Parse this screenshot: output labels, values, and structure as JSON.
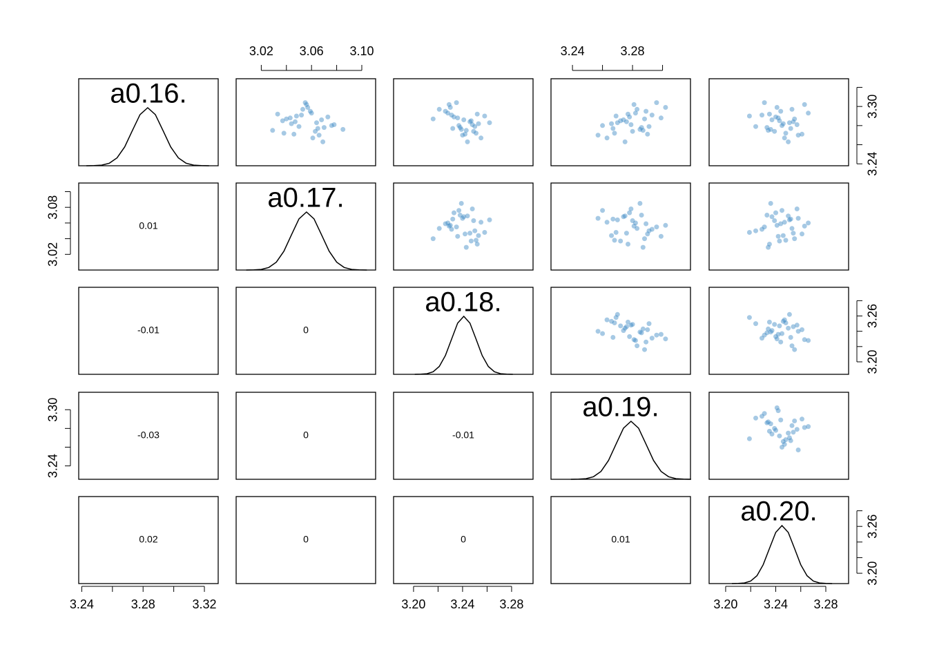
{
  "chart_data": {
    "type": "scatter_matrix",
    "point_color": "#3a87c4",
    "line_color": "#000000",
    "variables": [
      {
        "name": "a0.16.",
        "lim": [
          3.238,
          3.329
        ],
        "samples": [
          3.284,
          3.278,
          3.295,
          3.272,
          3.286,
          3.291,
          3.281,
          3.267,
          3.288,
          3.302,
          3.275,
          3.283,
          3.289,
          3.279,
          3.297,
          3.27,
          3.285,
          3.276,
          3.293,
          3.282,
          3.304,
          3.263,
          3.287,
          3.274,
          3.29,
          3.28,
          3.299,
          3.271,
          3.292,
          3.277
        ],
        "density_x": [
          3.243,
          3.248,
          3.253,
          3.258,
          3.263,
          3.268,
          3.273,
          3.278,
          3.283,
          3.288,
          3.293,
          3.298,
          3.303,
          3.308,
          3.313,
          3.318,
          3.323
        ]
      },
      {
        "name": "a0.17.",
        "lim": [
          3.0,
          3.111
        ],
        "samples": [
          3.047,
          3.07,
          3.059,
          3.038,
          3.068,
          3.052,
          3.078,
          3.061,
          3.043,
          3.056,
          3.029,
          3.064,
          3.073,
          3.05,
          3.053,
          3.066,
          3.037,
          3.085,
          3.06,
          3.044,
          3.055,
          3.069,
          3.04,
          3.063,
          3.048,
          3.076,
          3.057,
          3.046,
          3.033,
          3.065
        ],
        "density_x": [
          3.008,
          3.014,
          3.02,
          3.026,
          3.032,
          3.038,
          3.044,
          3.05,
          3.056,
          3.062,
          3.068,
          3.074,
          3.08,
          3.086,
          3.092,
          3.098,
          3.104
        ]
      },
      {
        "name": "a0.18.",
        "lim": [
          3.1837,
          3.2975
        ],
        "samples": [
          3.246,
          3.238,
          3.226,
          3.251,
          3.241,
          3.231,
          3.248,
          3.255,
          3.236,
          3.229,
          3.243,
          3.262,
          3.233,
          3.25,
          3.221,
          3.24,
          3.247,
          3.239,
          3.228,
          3.253,
          3.235,
          3.244,
          3.216,
          3.249,
          3.258,
          3.237,
          3.23,
          3.242,
          3.252,
          3.232
        ],
        "density_x": [
          3.201,
          3.206,
          3.211,
          3.216,
          3.221,
          3.226,
          3.231,
          3.236,
          3.241,
          3.246,
          3.251,
          3.256,
          3.261,
          3.266,
          3.271,
          3.276,
          3.281
        ]
      },
      {
        "name": "a0.19.",
        "lim": [
          3.2257,
          3.3186
        ],
        "samples": [
          3.276,
          3.286,
          3.289,
          3.268,
          3.274,
          3.293,
          3.279,
          3.263,
          3.299,
          3.281,
          3.287,
          3.27,
          3.278,
          3.291,
          3.283,
          3.257,
          3.272,
          3.285,
          3.282,
          3.266,
          3.296,
          3.275,
          3.288,
          3.28,
          3.269,
          3.26,
          3.302,
          3.29,
          3.277,
          3.267
        ],
        "density_x": [
          3.239,
          3.244,
          3.249,
          3.254,
          3.259,
          3.264,
          3.269,
          3.274,
          3.279,
          3.284,
          3.289,
          3.294,
          3.299,
          3.304,
          3.309,
          3.314,
          3.319
        ]
      },
      {
        "name": "a0.20.",
        "lim": [
          3.1868,
          3.2982
        ],
        "samples": [
          3.254,
          3.233,
          3.244,
          3.248,
          3.237,
          3.229,
          3.257,
          3.247,
          3.242,
          3.263,
          3.234,
          3.251,
          3.24,
          3.224,
          3.253,
          3.258,
          3.243,
          3.236,
          3.266,
          3.246,
          3.231,
          3.25,
          3.255,
          3.239,
          3.219,
          3.245,
          3.241,
          3.261,
          3.235,
          3.252
        ],
        "density_x": [
          3.205,
          3.21,
          3.215,
          3.22,
          3.225,
          3.23,
          3.235,
          3.24,
          3.245,
          3.25,
          3.255,
          3.26,
          3.265,
          3.27,
          3.275,
          3.28,
          3.285
        ]
      }
    ],
    "density_y": [
      0.0003,
      0.0022,
      0.0111,
      0.0439,
      0.1353,
      0.3247,
      0.6065,
      0.8825,
      1,
      0.8825,
      0.6065,
      0.3247,
      0.1353,
      0.0439,
      0.0111,
      0.0022,
      0.0003
    ],
    "density_ylim": [
      0,
      1.5
    ],
    "correlations": [
      [
        0.01
      ],
      [
        -0.01,
        0
      ],
      [
        -0.03,
        0,
        -0.01
      ],
      [
        0.02,
        0,
        0,
        0.01
      ]
    ],
    "axes": [
      {
        "var": 0,
        "side": "bottom",
        "ticks": [
          3.24,
          3.28,
          3.32
        ],
        "minor_ticks": [
          3.26,
          3.3
        ]
      },
      {
        "var": 1,
        "side": "top",
        "ticks": [
          3.02,
          3.06,
          {
            "value": 3.1,
            "label": "3.10"
          }
        ],
        "minor_ticks": [
          3.04,
          3.08
        ]
      },
      {
        "var": 2,
        "side": "bottom",
        "ticks": [
          {
            "value": 3.2,
            "label": "3.20"
          },
          3.24,
          3.28
        ],
        "minor_ticks": [
          3.22,
          3.26
        ]
      },
      {
        "var": 3,
        "side": "top",
        "ticks": [
          3.24,
          3.28
        ],
        "minor_ticks": [
          3.26,
          3.3
        ]
      },
      {
        "var": 4,
        "side": "bottom",
        "ticks": [
          {
            "value": 3.2,
            "label": "3.20"
          },
          3.24,
          3.28
        ],
        "minor_ticks": [
          3.22,
          3.26
        ]
      },
      {
        "var": 0,
        "side": "right",
        "ticks": [
          3.24,
          {
            "value": 3.3,
            "label": "3.30"
          }
        ],
        "minor_ticks": [
          3.26,
          3.28,
          3.32
        ]
      },
      {
        "var": 1,
        "side": "left",
        "ticks": [
          3.02,
          3.08
        ],
        "minor_ticks": [
          3.04,
          3.06,
          3.1
        ]
      },
      {
        "var": 2,
        "side": "right",
        "ticks": [
          {
            "value": 3.2,
            "label": "3.20"
          },
          3.26
        ],
        "minor_ticks": [
          3.22,
          3.24,
          3.28
        ]
      },
      {
        "var": 3,
        "side": "left",
        "ticks": [
          3.24,
          {
            "value": 3.3,
            "label": "3.30"
          }
        ],
        "minor_ticks": [
          3.26,
          3.28
        ]
      },
      {
        "var": 4,
        "side": "right",
        "ticks": [
          {
            "value": 3.2,
            "label": "3.20"
          },
          3.26
        ],
        "minor_ticks": [
          3.22,
          3.24,
          3.28
        ]
      }
    ]
  }
}
